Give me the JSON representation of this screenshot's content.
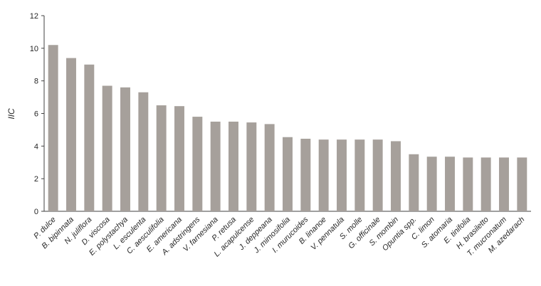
{
  "chart_data": {
    "type": "bar",
    "title": "",
    "xlabel": "",
    "ylabel": "IIC",
    "ylim": [
      0,
      12
    ],
    "yticks": [
      0,
      2,
      4,
      6,
      8,
      10,
      12
    ],
    "grid": false,
    "legend": false,
    "bar_color": "#a6a09b",
    "axis_color": "#404040",
    "text_color": "#262626",
    "categories": [
      "P. dulce",
      "B. bipinnata",
      "N. juliflora",
      "D. viscosa",
      "E. polystachya",
      "L. esculenta",
      "C. aesculifolia",
      "E. americana",
      "A. adstringens",
      "V. farnesiana",
      "P. retusa",
      "L. acapulcense",
      "J. deppeana",
      "J. mimosifolia",
      "I. murucoides",
      "B. linanoe",
      "V. pennatula",
      "S. molle",
      "G. officinale",
      "S. mombin",
      "Opuntia spp.",
      "C. limon",
      "S. atomaria",
      "E. tinifolia",
      "H. brasiletto",
      "T. mucronatum",
      "M. azedarach"
    ],
    "values": [
      10.2,
      9.4,
      9.0,
      7.7,
      7.6,
      7.3,
      6.5,
      6.45,
      5.8,
      5.5,
      5.5,
      5.45,
      5.35,
      4.55,
      4.45,
      4.4,
      4.4,
      4.4,
      4.4,
      4.3,
      3.5,
      3.35,
      3.35,
      3.3,
      3.3,
      3.3,
      3.3
    ]
  }
}
